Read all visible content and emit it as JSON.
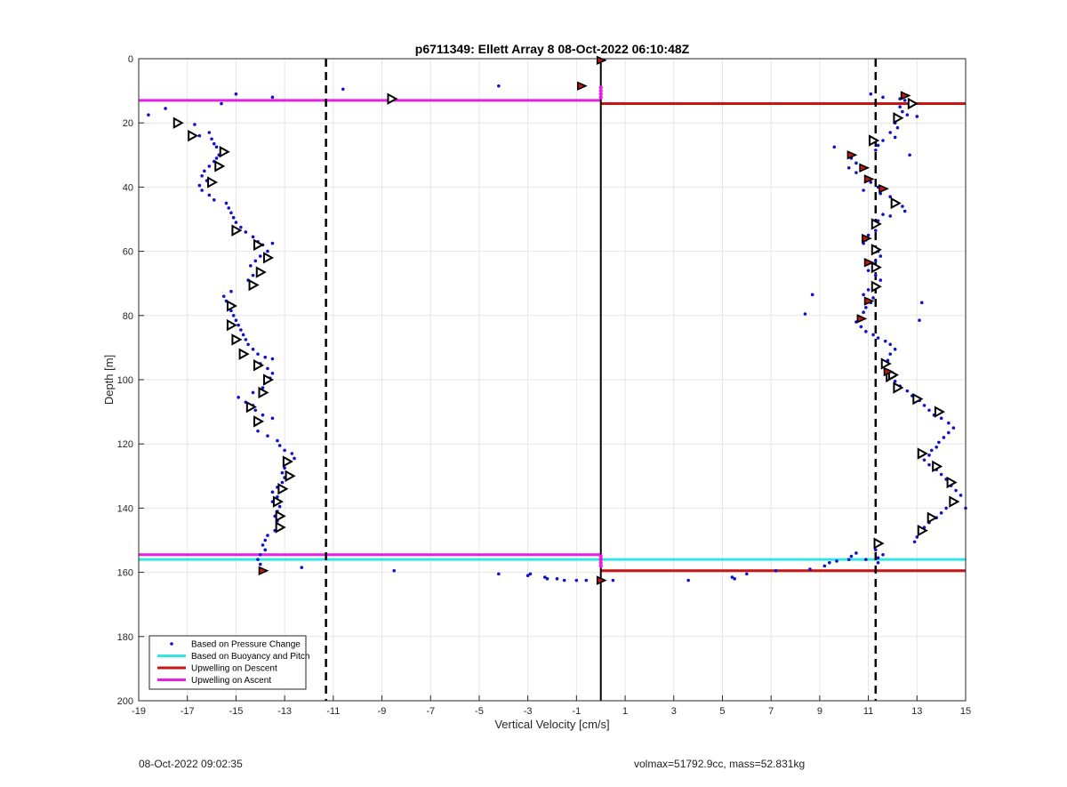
{
  "footer": {
    "timestamp": "08-Oct-2022 09:02:35",
    "info": "volmax=51792.9cc, mass=52.831kg"
  },
  "colors": {
    "pressure": "#1010d0",
    "buoyancy": "#33e6e6",
    "descent": "#c81414",
    "ascent": "#e61ee6",
    "threshold": "#000000"
  },
  "chart_data": {
    "type": "scatter",
    "title": "p6711349: Ellett Array 8 08-Oct-2022 06:10:48Z",
    "xlabel": "Vertical Velocity [cm/s]",
    "ylabel": "Depth [m]",
    "xlim": [
      -19,
      15
    ],
    "ylim": [
      200,
      0
    ],
    "y_reversed": true,
    "grid": true,
    "legend_location": "bottom-left",
    "xticks": [
      "-19",
      "-17",
      "-15",
      "-13",
      "-11",
      "-9",
      "-7",
      "-5",
      "-3",
      "-1",
      "1",
      "3",
      "5",
      "7",
      "9",
      "11",
      "13",
      "15"
    ],
    "yticks": [
      "0",
      "20",
      "40",
      "60",
      "80",
      "100",
      "120",
      "140",
      "160",
      "180",
      "200"
    ],
    "legend": [
      {
        "label": "Based on Pressure Change",
        "kind": "dot",
        "color": "#1010d0"
      },
      {
        "label": "Based on Buoyancy and Pitch",
        "kind": "line",
        "color": "#33e6e6"
      },
      {
        "label": "Upwelling on Descent",
        "kind": "line",
        "color": "#c81414"
      },
      {
        "label": "Upwelling on Ascent",
        "kind": "line",
        "color": "#e61ee6"
      }
    ],
    "thresholds_x": [
      -11.3,
      11.3
    ],
    "zero_line_x": 0,
    "horizontal_lines": [
      {
        "y": 13,
        "x": [
          -19,
          0
        ],
        "color": "#e61ee6"
      },
      {
        "y": 14,
        "x": [
          0,
          15
        ],
        "color": "#c81414"
      },
      {
        "y": 154.5,
        "x": [
          -19,
          0
        ],
        "color": "#e61ee6"
      },
      {
        "y": 156,
        "x": [
          -19,
          15
        ],
        "color": "#33e6e6"
      },
      {
        "y": 159.5,
        "x": [
          0,
          15
        ],
        "color": "#c81414"
      }
    ],
    "pressure_change_points": [
      [
        -18.6,
        17.5
      ],
      [
        -17.9,
        15.5
      ],
      [
        -17.4,
        19.5
      ],
      [
        -16.7,
        20.5
      ],
      [
        -16.5,
        24
      ],
      [
        -16.1,
        23
      ],
      [
        -16.0,
        25
      ],
      [
        -15.9,
        26.5
      ],
      [
        -15.8,
        27.5
      ],
      [
        -15.5,
        28.5
      ],
      [
        -15.7,
        30
      ],
      [
        -15.8,
        31
      ],
      [
        -15.9,
        32
      ],
      [
        -16.1,
        33.5
      ],
      [
        -16.3,
        35
      ],
      [
        -16.4,
        36.5
      ],
      [
        -16.2,
        38
      ],
      [
        -16.5,
        39.5
      ],
      [
        -16.4,
        41
      ],
      [
        -16.1,
        42.5
      ],
      [
        -15.9,
        44
      ],
      [
        -15.4,
        45
      ],
      [
        -15.3,
        46.5
      ],
      [
        -15.2,
        48
      ],
      [
        -15.1,
        49.5
      ],
      [
        -15.0,
        51
      ],
      [
        -14.8,
        52.5
      ],
      [
        -14.6,
        54
      ],
      [
        -14.3,
        55.5
      ],
      [
        -14.1,
        57
      ],
      [
        -13.9,
        58
      ],
      [
        -13.5,
        57.5
      ],
      [
        -13.7,
        60
      ],
      [
        -14.0,
        61.5
      ],
      [
        -14.2,
        63
      ],
      [
        -14.4,
        64.5
      ],
      [
        -14.1,
        66
      ],
      [
        -14.3,
        67.5
      ],
      [
        -14.5,
        69
      ],
      [
        -14.3,
        70.5
      ],
      [
        -15.2,
        72.5
      ],
      [
        -15.5,
        74
      ],
      [
        -15.4,
        75.5
      ],
      [
        -15.3,
        77
      ],
      [
        -15.2,
        78.5
      ],
      [
        -15.1,
        80
      ],
      [
        -15.0,
        81.5
      ],
      [
        -14.9,
        83
      ],
      [
        -14.8,
        84.5
      ],
      [
        -14.7,
        86
      ],
      [
        -14.6,
        87.5
      ],
      [
        -14.5,
        89
      ],
      [
        -14.3,
        90.5
      ],
      [
        -14.1,
        92
      ],
      [
        -13.8,
        93
      ],
      [
        -13.5,
        93.5
      ],
      [
        -14.0,
        95
      ],
      [
        -13.7,
        96.5
      ],
      [
        -13.5,
        98
      ],
      [
        -13.6,
        99.5
      ],
      [
        -13.8,
        101
      ],
      [
        -13.9,
        102.5
      ],
      [
        -14.3,
        104
      ],
      [
        -14.9,
        105.5
      ],
      [
        -14.6,
        107
      ],
      [
        -14.3,
        108
      ],
      [
        -14.2,
        109.5
      ],
      [
        -13.9,
        111
      ],
      [
        -13.5,
        112
      ],
      [
        -14.2,
        114
      ],
      [
        -14.1,
        116
      ],
      [
        -13.7,
        117.5
      ],
      [
        -13.3,
        119
      ],
      [
        -13.2,
        120.5
      ],
      [
        -13.0,
        122
      ],
      [
        -12.7,
        123
      ],
      [
        -12.6,
        124.5
      ],
      [
        -12.9,
        126
      ],
      [
        -13.0,
        127.5
      ],
      [
        -13.1,
        129
      ],
      [
        -13.0,
        130.5
      ],
      [
        -13.1,
        132
      ],
      [
        -13.3,
        133.5
      ],
      [
        -13.5,
        135
      ],
      [
        -13.3,
        136.5
      ],
      [
        -13.5,
        138
      ],
      [
        -13.2,
        139.5
      ],
      [
        -13.3,
        141
      ],
      [
        -13.4,
        142.5
      ],
      [
        -13.3,
        144
      ],
      [
        -13.2,
        145.5
      ],
      [
        -13.4,
        147
      ],
      [
        -13.7,
        148.5
      ],
      [
        -13.8,
        150
      ],
      [
        -13.9,
        151.5
      ],
      [
        -13.8,
        153
      ],
      [
        -14.0,
        154.5
      ],
      [
        -14.1,
        156
      ],
      [
        -14.0,
        157.5
      ],
      [
        -12.3,
        158.5
      ],
      [
        -15.0,
        11
      ],
      [
        -13.5,
        12
      ],
      [
        -15.6,
        14
      ],
      [
        -10.6,
        9.5
      ],
      [
        -4.2,
        8.5
      ],
      [
        -0.9,
        8
      ],
      [
        -8.5,
        159.5
      ],
      [
        -4.2,
        160.5
      ],
      [
        -3.0,
        161
      ],
      [
        -2.9,
        160.5
      ],
      [
        -2.3,
        161.5
      ],
      [
        -2.2,
        162
      ],
      [
        -1.8,
        162
      ],
      [
        -1.5,
        162.5
      ],
      [
        -1.0,
        162.5
      ],
      [
        -0.6,
        162.5
      ],
      [
        0.5,
        162.5
      ],
      [
        3.6,
        162.5
      ],
      [
        5.4,
        161.5
      ],
      [
        5.5,
        162
      ],
      [
        6.0,
        160.5
      ],
      [
        7.2,
        159.5
      ],
      [
        8.6,
        159
      ],
      [
        9.2,
        158
      ],
      [
        9.4,
        157
      ],
      [
        9.7,
        156.5
      ],
      [
        10.2,
        156
      ],
      [
        10.3,
        155
      ],
      [
        10.5,
        154
      ],
      [
        10.9,
        156
      ],
      [
        11.4,
        157
      ],
      [
        11.4,
        155.5
      ],
      [
        11.6,
        154.5
      ],
      [
        11.3,
        153
      ],
      [
        11.1,
        11
      ],
      [
        11.6,
        12
      ],
      [
        12.3,
        12.5
      ],
      [
        12.5,
        13
      ],
      [
        12.8,
        13.5
      ],
      [
        12.3,
        15
      ],
      [
        12.4,
        16.5
      ],
      [
        12.6,
        17.5
      ],
      [
        13.0,
        18
      ],
      [
        12.1,
        20
      ],
      [
        12.2,
        21.5
      ],
      [
        11.9,
        23
      ],
      [
        12.1,
        24.5
      ],
      [
        11.6,
        25.5
      ],
      [
        11.4,
        27
      ],
      [
        11.3,
        28.5
      ],
      [
        9.6,
        27.5
      ],
      [
        12.7,
        30
      ],
      [
        10.3,
        31
      ],
      [
        10.5,
        32.5
      ],
      [
        10.2,
        34
      ],
      [
        10.5,
        35.5
      ],
      [
        10.9,
        37
      ],
      [
        11.1,
        38.5
      ],
      [
        11.4,
        40
      ],
      [
        10.8,
        41
      ],
      [
        11.5,
        42
      ],
      [
        11.9,
        43
      ],
      [
        12.0,
        44.5
      ],
      [
        12.4,
        46
      ],
      [
        12.5,
        47.5
      ],
      [
        11.6,
        48.5
      ],
      [
        11.9,
        49
      ],
      [
        11.4,
        50.5
      ],
      [
        11.2,
        52
      ],
      [
        11.3,
        53.5
      ],
      [
        11.0,
        55
      ],
      [
        10.9,
        56.5
      ],
      [
        10.8,
        57.5
      ],
      [
        11.2,
        58.5
      ],
      [
        11.4,
        60
      ],
      [
        11.5,
        61.5
      ],
      [
        11.3,
        63
      ],
      [
        11.2,
        64.5
      ],
      [
        11.0,
        66
      ],
      [
        11.3,
        67.5
      ],
      [
        11.5,
        69
      ],
      [
        11.2,
        70.5
      ],
      [
        11.0,
        72
      ],
      [
        10.8,
        73.5
      ],
      [
        8.7,
        73.5
      ],
      [
        11.2,
        74.5
      ],
      [
        11.1,
        76
      ],
      [
        10.9,
        77.5
      ],
      [
        8.4,
        79.5
      ],
      [
        10.8,
        79
      ],
      [
        10.6,
        80.5
      ],
      [
        10.5,
        82
      ],
      [
        10.7,
        83.5
      ],
      [
        10.9,
        85
      ],
      [
        11.2,
        86
      ],
      [
        11.4,
        87
      ],
      [
        11.7,
        88
      ],
      [
        11.9,
        89
      ],
      [
        12.1,
        90.5
      ],
      [
        11.9,
        92
      ],
      [
        11.8,
        94
      ],
      [
        11.6,
        96
      ],
      [
        11.7,
        97.5
      ],
      [
        11.9,
        99
      ],
      [
        12.1,
        100.5
      ],
      [
        12.3,
        102
      ],
      [
        12.6,
        103.5
      ],
      [
        12.8,
        105
      ],
      [
        13.1,
        106.5
      ],
      [
        13.3,
        108
      ],
      [
        13.5,
        109.5
      ],
      [
        13.7,
        111
      ],
      [
        14.0,
        112
      ],
      [
        14.3,
        113.5
      ],
      [
        14.5,
        115
      ],
      [
        14.3,
        116.5
      ],
      [
        14.1,
        118
      ],
      [
        13.9,
        119.5
      ],
      [
        13.8,
        121
      ],
      [
        13.6,
        122
      ],
      [
        13.5,
        123.5
      ],
      [
        13.3,
        125
      ],
      [
        13.5,
        126.5
      ],
      [
        13.8,
        128
      ],
      [
        14.0,
        129.5
      ],
      [
        14.2,
        131
      ],
      [
        14.4,
        133
      ],
      [
        14.6,
        134.5
      ],
      [
        14.8,
        136
      ],
      [
        14.5,
        137.5
      ],
      [
        15.0,
        140
      ],
      [
        14.2,
        140
      ],
      [
        14.0,
        141.5
      ],
      [
        13.8,
        143
      ],
      [
        13.5,
        144.5
      ],
      [
        13.3,
        146
      ],
      [
        13.1,
        147.5
      ],
      [
        13.0,
        149
      ],
      [
        12.9,
        150.5
      ],
      [
        13.2,
        76
      ],
      [
        13.1,
        81.5
      ]
    ],
    "buoyancy_pitch_points": [
      [
        -17.4,
        20
      ],
      [
        -16.8,
        24
      ],
      [
        -15.5,
        29
      ],
      [
        -15.7,
        33.5
      ],
      [
        -16.0,
        38.5
      ],
      [
        -15.0,
        53.5
      ],
      [
        -14.1,
        58
      ],
      [
        -13.7,
        62
      ],
      [
        -14.0,
        66.5
      ],
      [
        -14.3,
        70.5
      ],
      [
        -15.2,
        77
      ],
      [
        -15.2,
        83
      ],
      [
        -15.0,
        87.5
      ],
      [
        -14.7,
        92
      ],
      [
        -14.1,
        95.5
      ],
      [
        -13.7,
        100
      ],
      [
        -13.9,
        104
      ],
      [
        -14.4,
        108.5
      ],
      [
        -14.1,
        113
      ],
      [
        -12.9,
        125.5
      ],
      [
        -12.8,
        130
      ],
      [
        -13.1,
        134
      ],
      [
        -13.3,
        138
      ],
      [
        -13.2,
        142.5
      ],
      [
        -13.2,
        146
      ],
      [
        -8.6,
        12.5
      ],
      [
        11.2,
        25.5
      ],
      [
        12.2,
        18.5
      ],
      [
        11.3,
        51.5
      ],
      [
        11.3,
        59.5
      ],
      [
        11.3,
        65
      ],
      [
        11.3,
        71
      ],
      [
        12.1,
        45
      ],
      [
        11.7,
        95
      ],
      [
        11.9,
        99
      ],
      [
        12.2,
        102.5
      ],
      [
        13.0,
        106
      ],
      [
        13.9,
        110
      ],
      [
        13.2,
        123
      ],
      [
        13.8,
        127
      ],
      [
        14.4,
        132
      ],
      [
        14.5,
        138
      ],
      [
        13.6,
        143
      ],
      [
        13.2,
        147
      ],
      [
        11.4,
        151
      ],
      [
        12.8,
        14
      ],
      [
        12.0,
        98.5
      ]
    ],
    "descent_points": [
      [
        0.0,
        0.5
      ],
      [
        -0.8,
        8.5
      ],
      [
        12.5,
        11.5
      ],
      [
        10.3,
        30
      ],
      [
        10.8,
        34
      ],
      [
        11.0,
        37.5
      ],
      [
        11.6,
        40.5
      ],
      [
        10.9,
        56
      ],
      [
        11.0,
        63.5
      ],
      [
        11.0,
        75.5
      ],
      [
        10.7,
        81
      ],
      [
        11.8,
        97.5
      ],
      [
        -13.9,
        159.5
      ],
      [
        0.0,
        162.5
      ]
    ],
    "ascent_points": [
      [
        0.0,
        9
      ],
      [
        0.0,
        10
      ],
      [
        0.0,
        11
      ],
      [
        0.0,
        12
      ],
      [
        0.0,
        155
      ],
      [
        0.0,
        156
      ],
      [
        0.0,
        157
      ],
      [
        0.0,
        158
      ]
    ]
  }
}
